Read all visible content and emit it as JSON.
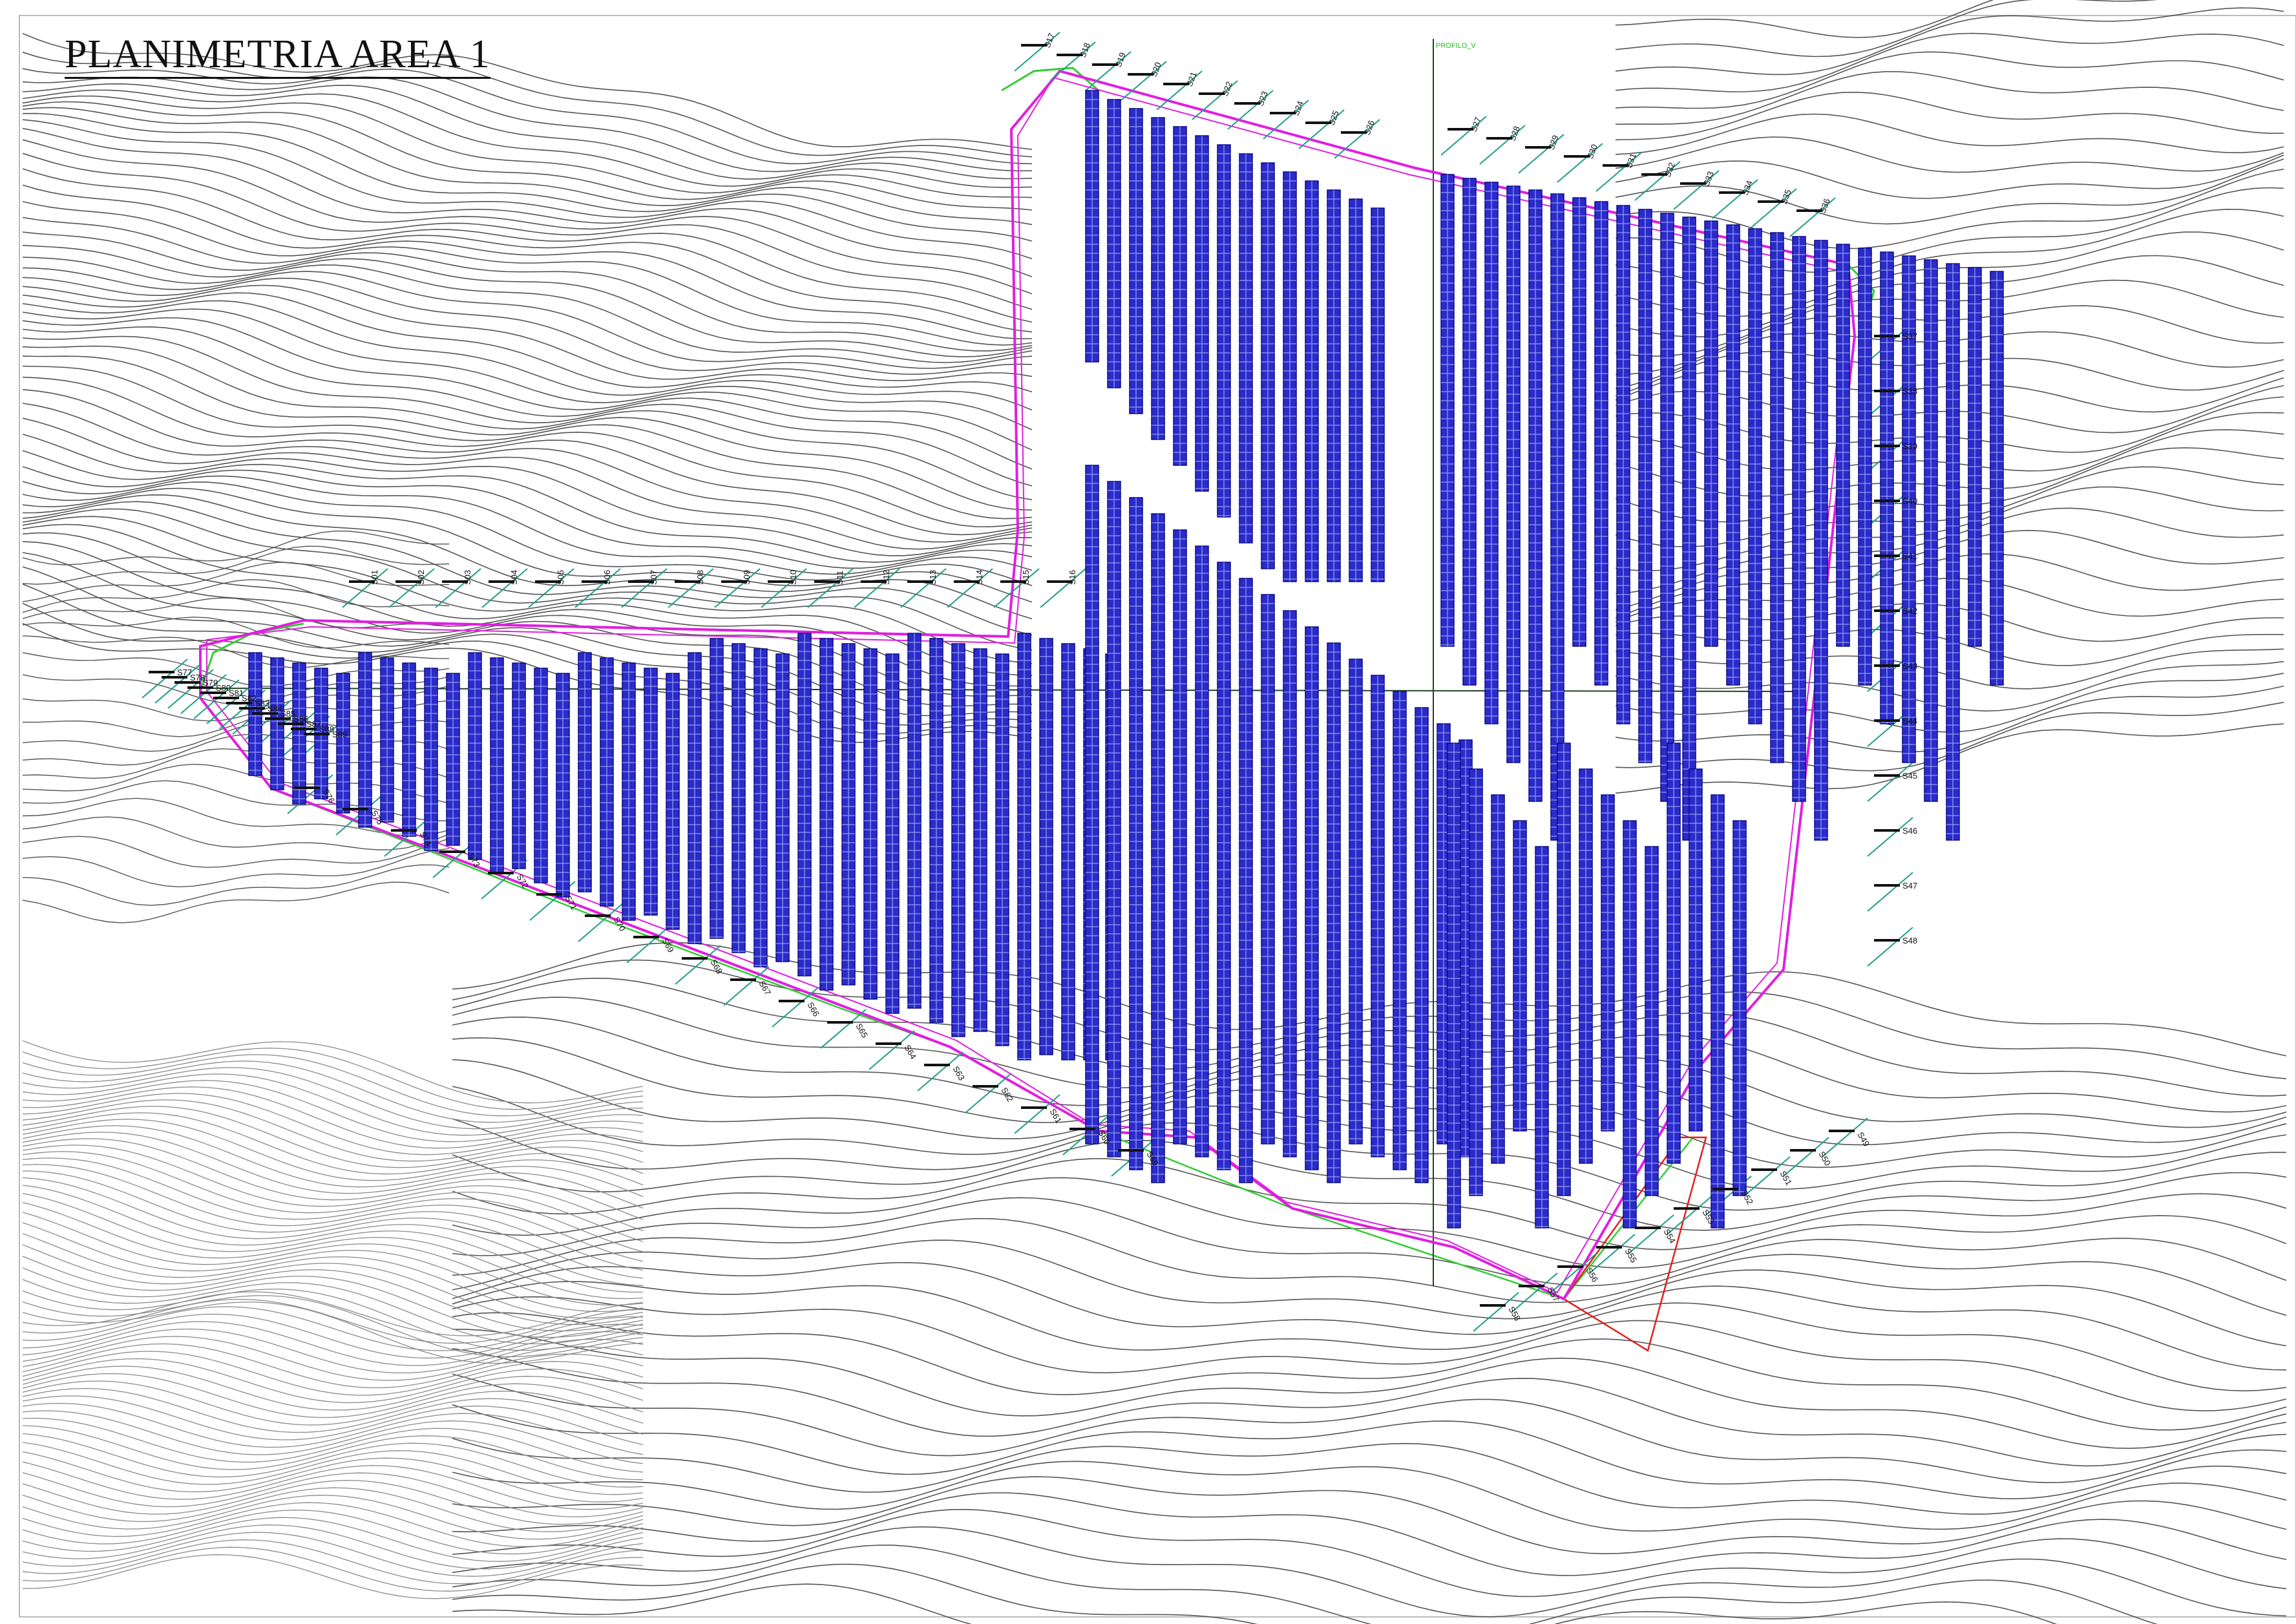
{
  "title": "PLANIMETRIA AREA 1",
  "colors": {
    "contour": "#555555",
    "contour_dense": "#8a8a8a",
    "panel_fill": "#2b2bc9",
    "panel_stroke": "#0a0a88",
    "panel_grid": "#a9b4ff",
    "fence": "#e01fe0",
    "road": "#33cc33",
    "cable": "#1f9e86",
    "boundary_red": "#e02020",
    "frame": "#bbbbbb"
  },
  "profile_label": "PROFILO_V",
  "section_labels": [
    "S01",
    "S02",
    "S03",
    "S04",
    "S05",
    "S06",
    "S07",
    "S08",
    "S09",
    "S10",
    "S11",
    "S12",
    "S13",
    "S14",
    "S15",
    "S16",
    "S17",
    "S18",
    "S19",
    "S20",
    "S21",
    "S22",
    "S23",
    "S24",
    "S25",
    "S26",
    "S27",
    "S28",
    "S29",
    "S30",
    "S31",
    "S32",
    "S33",
    "S34",
    "S35",
    "S36",
    "S37",
    "S38",
    "S39",
    "S40",
    "S41",
    "S42",
    "S43",
    "S44",
    "S45",
    "S46",
    "S47",
    "S48",
    "S49",
    "S50",
    "S51",
    "S52",
    "S53",
    "S54",
    "S55",
    "S56",
    "S57",
    "S58",
    "S59",
    "S60",
    "S61",
    "S62",
    "S63",
    "S64",
    "S65",
    "S66",
    "S67",
    "S68",
    "S69",
    "S70",
    "S71",
    "S72",
    "S73",
    "S74",
    "S75",
    "S76",
    "S77",
    "S78",
    "S79",
    "S80",
    "S81",
    "S82",
    "S83",
    "S84",
    "S85",
    "S86",
    "S87",
    "S88",
    "S89"
  ]
}
